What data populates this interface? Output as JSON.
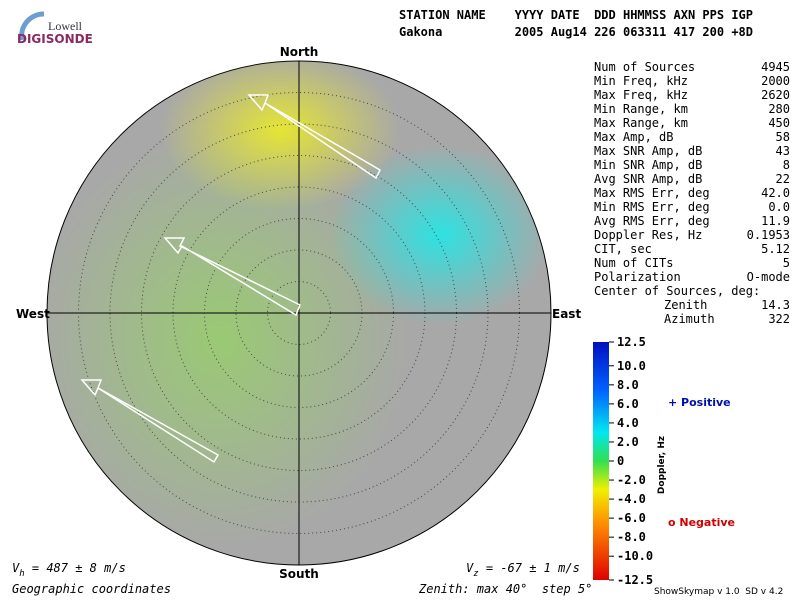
{
  "header": {
    "logo_top": "Lowell",
    "logo_bottom": "DIGISONDE",
    "columns_line": "STATION NAME    YYYY DATE  DDD HHMMSS AXN PPS IGP",
    "values_line": "Gakona          2005 Aug14 226 063311 417 200 +8D"
  },
  "compass": {
    "north": "North",
    "south": "South",
    "east": "East",
    "west": "West"
  },
  "stats": {
    "rows": [
      [
        "Num of Sources",
        "4945"
      ],
      [
        "Min Freq, kHz",
        "2000"
      ],
      [
        "Max Freq, kHz",
        "2620"
      ],
      [
        "Min Range, km",
        "280"
      ],
      [
        "Max Range, km",
        "450"
      ],
      [
        "Max Amp, dB",
        "58"
      ],
      [
        "Max SNR Amp, dB",
        "43"
      ],
      [
        "Min SNR Amp, dB",
        "8"
      ],
      [
        "Avg SNR Amp, dB",
        "22"
      ],
      [
        "Max RMS Err, deg",
        "42.0"
      ],
      [
        "Min RMS Err, deg",
        "0.0"
      ],
      [
        "Avg RMS Err, deg",
        "11.9"
      ],
      [
        "Doppler Res, Hz",
        "0.1953"
      ],
      [
        "CIT, sec",
        "5.12"
      ],
      [
        "Num of CITs",
        "5"
      ],
      [
        "Polarization",
        "O-mode"
      ]
    ],
    "center_title": "Center of Sources, deg:",
    "center_rows": [
      [
        "Zenith",
        "14.3"
      ],
      [
        "Azimuth",
        "322"
      ]
    ]
  },
  "colorbar": {
    "title": "Doppler, Hz",
    "range": [
      -12.5,
      12.5
    ],
    "ticks": [
      12.5,
      {
        "value": 10,
        "label": "10.0"
      },
      {
        "value": 8,
        "label": "8.0"
      },
      {
        "value": 6,
        "label": "6.0"
      },
      {
        "value": 4,
        "label": "4.0"
      },
      {
        "value": 2,
        "label": "2.0"
      },
      0,
      {
        "value": -2,
        "label": "-2.0"
      },
      {
        "value": -4,
        "label": "-4.0"
      },
      {
        "value": -6,
        "label": "-6.0"
      },
      {
        "value": -8,
        "label": "-8.0"
      },
      {
        "value": -10,
        "label": "-10.0"
      },
      -12.5
    ],
    "positive": "+ Positive",
    "negative": "o Negative"
  },
  "footer": {
    "vh_symbol": "V",
    "vh_sub": "h",
    "vh_text": " = 487 ± 8 m/s",
    "vz_symbol": "V",
    "vz_sub": "z",
    "vz_text": " = -67 ± 1 m/s",
    "coordinates": "Geographic coordinates",
    "zenith": "Zenith: max 40°  step 5°",
    "version": "ShowSkymap v 1.0  SD v 4.2"
  }
}
